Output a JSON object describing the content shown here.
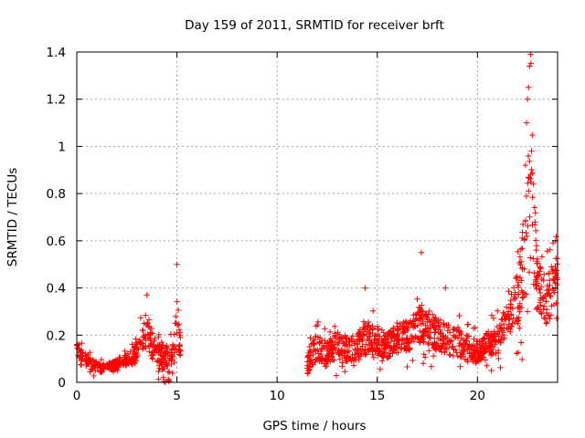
{
  "chart_data": {
    "type": "scatter",
    "title": "Day 159 of 2011, SRMTID for receiver brft",
    "xlabel": "GPS time / hours",
    "ylabel": "SRMTID / TECUs",
    "xlim": [
      0,
      24
    ],
    "ylim": [
      0,
      1.4
    ],
    "grid": true,
    "marker": "+",
    "series_color": "#ff0000",
    "x_ticks": [
      {
        "value": 0,
        "label": "0"
      },
      {
        "value": 5,
        "label": "5"
      },
      {
        "value": 10,
        "label": "10"
      },
      {
        "value": 15,
        "label": "15"
      },
      {
        "value": 20,
        "label": "20"
      }
    ],
    "y_ticks": [
      {
        "value": 0,
        "label": "0"
      },
      {
        "value": 0.2,
        "label": "0.2"
      },
      {
        "value": 0.4,
        "label": "0.4"
      },
      {
        "value": 0.6,
        "label": "0.6"
      },
      {
        "value": 0.8,
        "label": "0.8"
      },
      {
        "value": 1.0,
        "label": "1"
      },
      {
        "value": 1.2,
        "label": "1.2"
      },
      {
        "value": 1.4,
        "label": "1.4"
      }
    ],
    "segments": [
      {
        "x_start": 0.0,
        "x_end": 5.2,
        "profile": [
          [
            0.0,
            0.15,
            0.05
          ],
          [
            0.3,
            0.11,
            0.05
          ],
          [
            0.7,
            0.08,
            0.04
          ],
          [
            1.2,
            0.06,
            0.03
          ],
          [
            1.8,
            0.07,
            0.03
          ],
          [
            2.3,
            0.09,
            0.04
          ],
          [
            2.7,
            0.1,
            0.05
          ],
          [
            3.1,
            0.14,
            0.08
          ],
          [
            3.4,
            0.22,
            0.12
          ],
          [
            3.7,
            0.17,
            0.1
          ],
          [
            4.0,
            0.12,
            0.09
          ],
          [
            4.4,
            0.1,
            0.09
          ],
          [
            4.8,
            0.1,
            0.1
          ],
          [
            5.0,
            0.28,
            0.2
          ],
          [
            5.2,
            0.15,
            0.1
          ]
        ],
        "count": 400
      },
      {
        "x_start": 11.5,
        "x_end": 24.0,
        "profile": [
          [
            11.5,
            0.08,
            0.08
          ],
          [
            12.0,
            0.15,
            0.1
          ],
          [
            12.5,
            0.12,
            0.08
          ],
          [
            13.0,
            0.16,
            0.1
          ],
          [
            13.5,
            0.14,
            0.09
          ],
          [
            14.0,
            0.15,
            0.1
          ],
          [
            14.5,
            0.19,
            0.12
          ],
          [
            15.0,
            0.17,
            0.1
          ],
          [
            15.5,
            0.16,
            0.1
          ],
          [
            16.0,
            0.18,
            0.1
          ],
          [
            16.5,
            0.2,
            0.11
          ],
          [
            17.0,
            0.24,
            0.14
          ],
          [
            17.5,
            0.22,
            0.12
          ],
          [
            18.0,
            0.2,
            0.12
          ],
          [
            18.5,
            0.19,
            0.12
          ],
          [
            19.0,
            0.17,
            0.11
          ],
          [
            19.5,
            0.15,
            0.09
          ],
          [
            20.0,
            0.13,
            0.08
          ],
          [
            20.5,
            0.16,
            0.09
          ],
          [
            21.0,
            0.18,
            0.1
          ],
          [
            21.5,
            0.24,
            0.12
          ],
          [
            22.0,
            0.35,
            0.2
          ],
          [
            22.4,
            0.55,
            0.35
          ],
          [
            22.7,
            0.8,
            0.55
          ],
          [
            23.0,
            0.4,
            0.2
          ],
          [
            23.5,
            0.35,
            0.18
          ],
          [
            24.0,
            0.45,
            0.15
          ]
        ],
        "count": 1100
      }
    ],
    "highlights": [
      {
        "x": 22.65,
        "y": 1.39
      },
      {
        "x": 22.6,
        "y": 1.34
      },
      {
        "x": 22.55,
        "y": 1.25
      },
      {
        "x": 22.5,
        "y": 1.2
      },
      {
        "x": 22.45,
        "y": 1.1
      },
      {
        "x": 22.7,
        "y": 0.98
      },
      {
        "x": 22.4,
        "y": 0.92
      },
      {
        "x": 22.8,
        "y": 0.84
      },
      {
        "x": 5.0,
        "y": 0.5
      },
      {
        "x": 3.5,
        "y": 0.37
      },
      {
        "x": 17.2,
        "y": 0.55
      },
      {
        "x": 14.4,
        "y": 0.4
      },
      {
        "x": 23.9,
        "y": 0.6
      },
      {
        "x": 18.4,
        "y": 0.4
      }
    ]
  }
}
